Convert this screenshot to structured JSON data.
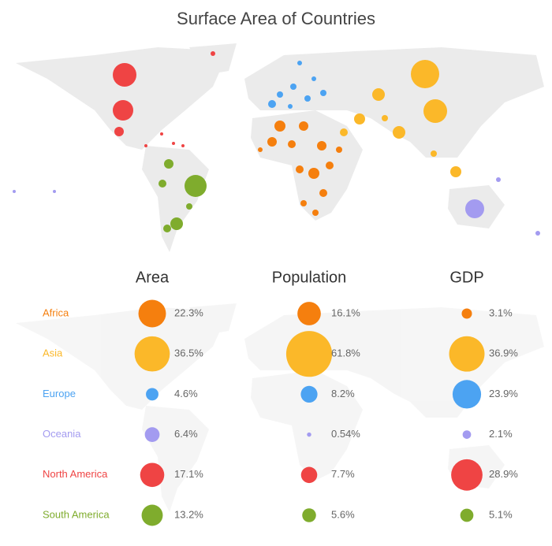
{
  "chart_data": {
    "type": "bubble_matrix",
    "title": "Surface Area of Countries",
    "categories": [
      "Africa",
      "Asia",
      "Europe",
      "Oceania",
      "North America",
      "South America"
    ],
    "colors": [
      "#f57f0e",
      "#fbb829",
      "#4ca3f2",
      "#a39bf0",
      "#ef4444",
      "#7fac2d"
    ],
    "series": [
      {
        "name": "Area",
        "values": [
          22.3,
          36.5,
          4.6,
          6.4,
          17.1,
          13.2
        ],
        "value_labels": [
          "22.3%",
          "36.5%",
          "4.6%",
          "6.4%",
          "17.1%",
          "13.2%"
        ]
      },
      {
        "name": "Population",
        "values": [
          16.1,
          61.8,
          8.2,
          0.54,
          7.7,
          5.6
        ],
        "value_labels": [
          "16.1%",
          "61.8%",
          "8.2%",
          "0.54%",
          "7.7%",
          "5.6%"
        ]
      },
      {
        "name": "GDP",
        "values": [
          3.1,
          36.9,
          23.9,
          2.1,
          28.9,
          5.1
        ],
        "value_labels": [
          "3.1%",
          "36.9%",
          "23.9%",
          "2.1%",
          "28.9%",
          "5.1%"
        ]
      }
    ]
  }
}
